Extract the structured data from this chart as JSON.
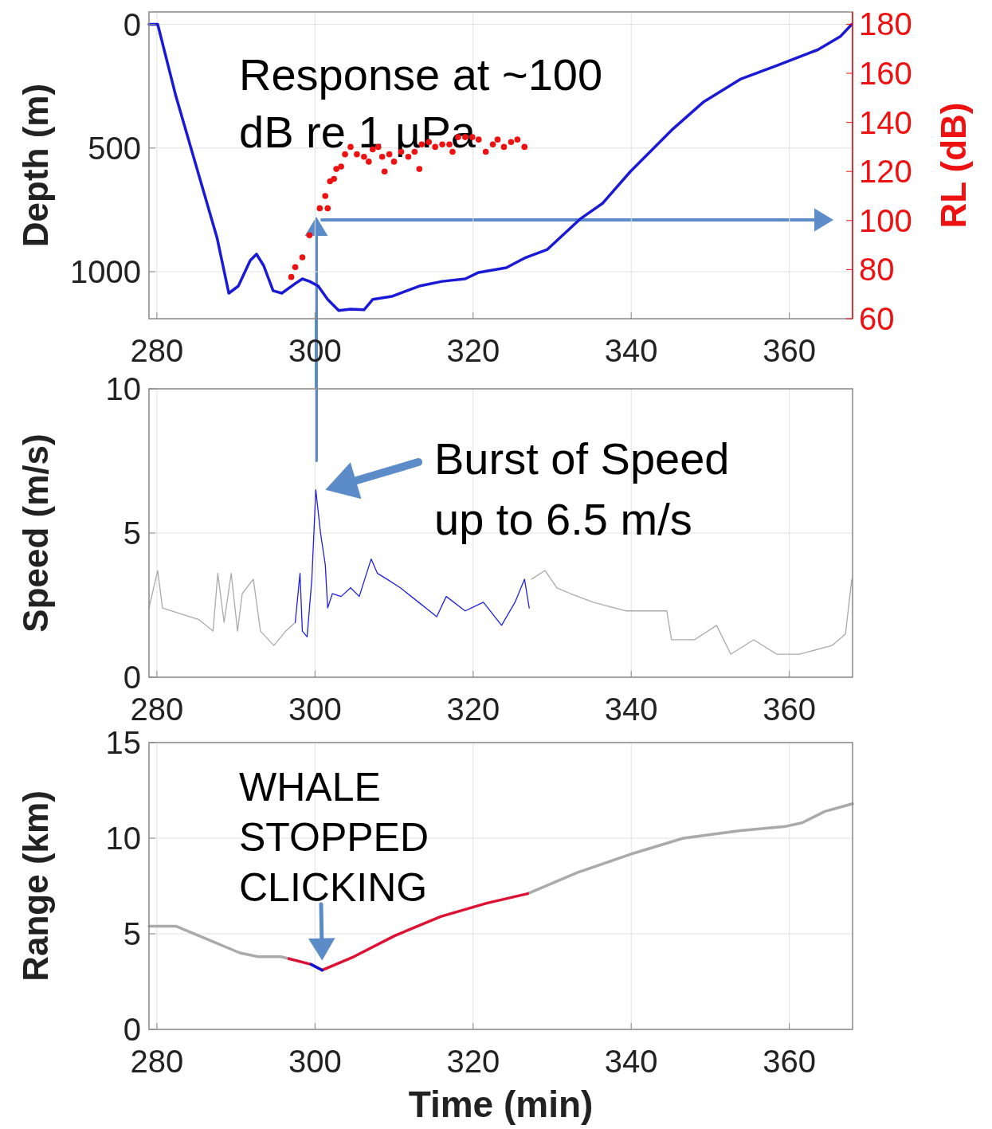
{
  "chart_data": [
    {
      "type": "line",
      "ylabel": "Depth (m)",
      "y2label": "RL (dB)",
      "xlim": [
        279,
        368
      ],
      "xticks": [
        280,
        300,
        320,
        340,
        360
      ],
      "ylim": [
        1190,
        -50
      ],
      "yticks": [
        0,
        500,
        1000
      ],
      "y2lim": [
        60,
        185
      ],
      "y2ticks": [
        60,
        80,
        100,
        120,
        140,
        160,
        180
      ],
      "grid": true,
      "annotations": [
        "Response at ~100 dB re 1 µPa"
      ],
      "series": [
        {
          "color": "#1a1ad6",
          "x": [
            279.0,
            280.1,
            282.4,
            287.6,
            289.1,
            290.3,
            291.8,
            292.6,
            293.5,
            294.7,
            295.8,
            297.5,
            298.4,
            299.3,
            300.4,
            301.6,
            303.0,
            304.5,
            306.2,
            307.3,
            309.7,
            313.2,
            316.1,
            319.0,
            320.7,
            324.2,
            326.5,
            329.4,
            333.5,
            336.4,
            339.9,
            345.1,
            349.1,
            353.8,
            358.4,
            363.6,
            366.5,
            367.9
          ],
          "values": [
            0,
            0,
            290,
            862,
            1087,
            1058,
            955,
            929,
            975,
            1077,
            1087,
            1048,
            1029,
            1039,
            1058,
            1112,
            1157,
            1151,
            1154,
            1112,
            1100,
            1058,
            1039,
            1029,
            1003,
            984,
            945,
            910,
            788,
            723,
            595,
            428,
            315,
            222,
            167,
            103,
            48,
            0
          ]
        },
        {
          "type": "scatter",
          "axis": "y2",
          "marker": "circle",
          "color": "#ee1111",
          "x": [
            297.0,
            297.5,
            298.4,
            299.3,
            300.6,
            301.6,
            301.3,
            301.9,
            302.4,
            302.7,
            303.3,
            303.8,
            304.5,
            305.3,
            306.2,
            306.8,
            307.3,
            308.0,
            308.5,
            308.8,
            309.4,
            310.0,
            310.9,
            311.8,
            312.6,
            313.2,
            313.5,
            314.4,
            315.2,
            316.1,
            317.0,
            317.4,
            318.1,
            319.0,
            319.9,
            320.7,
            321.6,
            322.5,
            323.1,
            323.9,
            324.8,
            325.6,
            326.5
          ],
          "values": [
            77,
            81,
            85,
            94,
            105,
            105,
            110,
            116,
            117,
            121,
            122,
            127,
            130,
            127,
            126,
            124,
            129,
            130,
            126,
            120,
            127,
            124,
            128,
            126,
            128,
            121,
            131,
            132,
            130,
            131,
            131,
            128,
            134,
            134,
            134,
            133,
            128,
            131,
            133,
            130,
            132,
            133,
            130
          ]
        }
      ]
    },
    {
      "type": "line",
      "ylabel": "Speed (m/s)",
      "xlim": [
        279,
        368
      ],
      "xticks": [
        280,
        300,
        320,
        340,
        360
      ],
      "ylim": [
        0,
        10
      ],
      "yticks": [
        0,
        5,
        10
      ],
      "grid": true,
      "annotations": [
        {
          "text": "Burst of Speed up to 6.5 m/s",
          "x": 300.1,
          "y": 6.5
        }
      ],
      "series": [
        {
          "color": "#aaaaaa",
          "x": [
            279.0,
            280.1,
            280.7,
            283.0,
            285.3,
            287.1,
            287.7,
            288.5,
            289.4,
            290.2,
            290.8,
            292.2,
            293.1,
            294.8,
            296.3,
            297.5,
            297.6,
            327.3,
            327.4,
            329.1,
            330.6,
            332.3,
            335.2,
            339.3,
            344.5,
            345.1,
            348.0,
            350.8,
            352.6,
            355.5,
            358.4,
            361.3,
            365.4,
            367.1,
            367.9
          ],
          "values": [
            2.4,
            3.7,
            2.4,
            2.2,
            2.0,
            1.6,
            3.6,
            1.9,
            3.6,
            1.6,
            2.9,
            3.4,
            1.6,
            1.1,
            1.6,
            1.9,
            null,
            null,
            3.4,
            3.7,
            3.1,
            2.9,
            2.6,
            2.3,
            2.3,
            1.3,
            1.3,
            1.8,
            0.8,
            1.3,
            0.8,
            0.8,
            1.1,
            1.5,
            3.4
          ]
        },
        {
          "color": "#2020dd",
          "x": [
            297.5,
            298.1,
            298.4,
            299.0,
            299.6,
            300.1,
            300.7,
            301.3,
            301.6,
            302.2,
            303.3,
            304.5,
            305.6,
            307.1,
            307.9,
            309.1,
            310.8,
            313.1,
            315.4,
            316.6,
            319.0,
            321.3,
            323.6,
            325.3,
            326.5,
            327.1
          ],
          "values": [
            1.9,
            3.6,
            1.6,
            1.4,
            3.4,
            6.5,
            5.0,
            3.9,
            2.4,
            2.9,
            2.8,
            3.1,
            2.8,
            4.1,
            3.6,
            3.4,
            3.1,
            2.6,
            2.1,
            2.8,
            2.3,
            2.6,
            1.8,
            2.6,
            3.4,
            2.4
          ]
        }
      ]
    },
    {
      "type": "line",
      "ylabel": "Range (km)",
      "xlabel": "Time (min)",
      "xlim": [
        279,
        368
      ],
      "xticks": [
        280,
        300,
        320,
        340,
        360
      ],
      "ylim": [
        0,
        15
      ],
      "yticks": [
        0,
        5,
        10,
        15
      ],
      "grid": true,
      "annotations": [
        {
          "text": "WHALE STOPPED CLICKING",
          "x": 300.9,
          "y": 3.1
        }
      ],
      "series": [
        {
          "color": "#aaaaaa",
          "x": [
            279.0,
            282.4,
            285.9,
            290.5,
            292.8,
            295.7,
            296.7,
            296.8,
            326.8,
            326.9,
            333.2,
            340.2,
            346.6,
            353.8,
            359.3,
            361.6,
            364.5,
            368.0
          ],
          "values": [
            5.4,
            5.4,
            4.8,
            4.0,
            3.8,
            3.8,
            3.7,
            null,
            null,
            7.1,
            8.2,
            9.2,
            10.0,
            10.4,
            10.6,
            10.8,
            11.4,
            11.8
          ]
        },
        {
          "color": "#dd1133",
          "x": [
            296.7,
            299.5,
            299.6,
            300.8,
            300.9,
            304.9,
            310.1,
            315.9,
            321.7,
            326.9
          ],
          "values": [
            3.7,
            3.4,
            null,
            null,
            3.1,
            3.8,
            4.9,
            5.9,
            6.6,
            7.1
          ]
        },
        {
          "color": "#1111cc",
          "x": [
            299.5,
            300.9
          ],
          "values": [
            3.4,
            3.1
          ]
        }
      ]
    }
  ]
}
